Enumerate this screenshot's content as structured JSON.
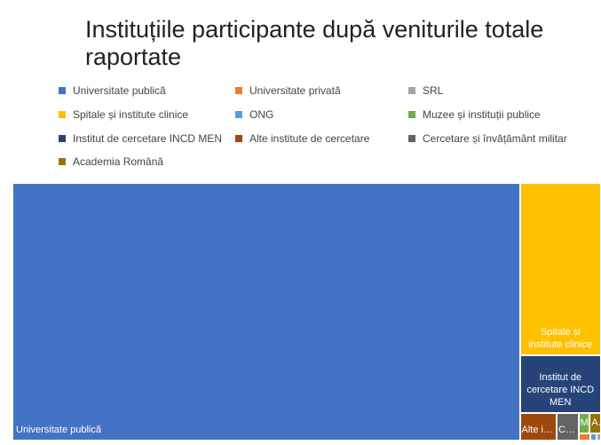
{
  "chart_data": {
    "type": "treemap",
    "title": "Instituțiile participante după veniturile totale raportate",
    "categories": [
      "Universitate publică",
      "Universitate privată",
      "SRL",
      "Spitale și institute clinice",
      "ONG",
      "Muzee și instituții publice",
      "Institut de cercetare INCD MEN",
      "Alte institute de cercetare",
      "Cercetare și învățământ militar",
      "Academia Română"
    ],
    "values": [
      86.1,
      0.06,
      0.02,
      9.2,
      0.03,
      0.15,
      3.1,
      0.67,
      0.4,
      0.15
    ],
    "colors": [
      "#4472c4",
      "#ed7d31",
      "#a5a5a5",
      "#ffc000",
      "#5b9bd5",
      "#70ad47",
      "#264478",
      "#9e480e",
      "#636363",
      "#997300"
    ],
    "legend": "top"
  }
}
